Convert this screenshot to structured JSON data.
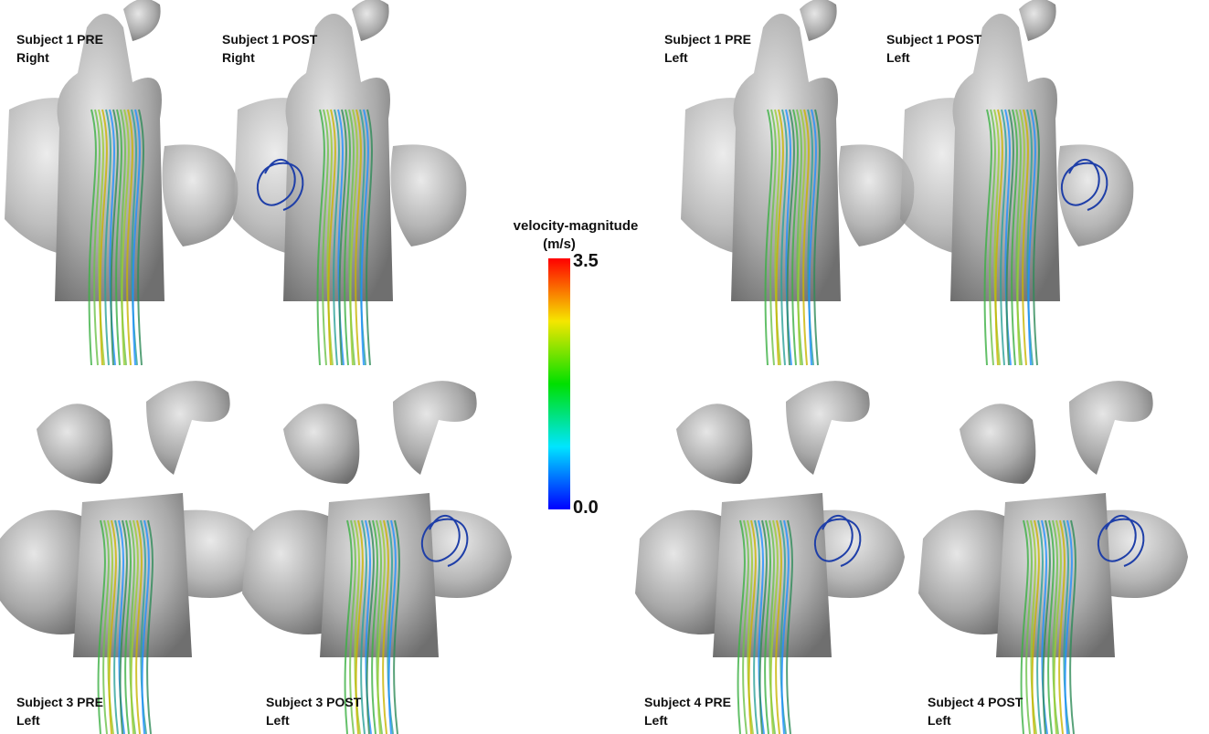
{
  "panels": [
    {
      "lines": [
        "Subject 1 PRE",
        "Right"
      ]
    },
    {
      "lines": [
        "Subject 1 POST",
        "Right"
      ]
    },
    {
      "lines": [
        "Subject 1 PRE",
        "Left"
      ]
    },
    {
      "lines": [
        "Subject 1 POST",
        "Left"
      ]
    },
    {
      "lines": [
        "Subject 3 PRE",
        "Left"
      ]
    },
    {
      "lines": [
        "Subject 3 POST",
        "Left"
      ]
    },
    {
      "lines": [
        "Subject 4 PRE",
        "Left"
      ]
    },
    {
      "lines": [
        "Subject 4 POST",
        "Left"
      ]
    }
  ],
  "colorbar": {
    "title": "velocity-magnitude",
    "unit": "(m/s)",
    "max": "3.5",
    "min": "0.0"
  }
}
